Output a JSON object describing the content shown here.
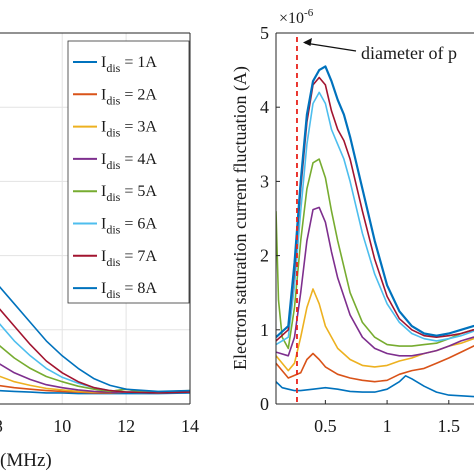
{
  "chart_data": [
    {
      "type": "line",
      "xlabel": "(MHz)",
      "ylabel": "",
      "xlim": [
        6.8,
        14
      ],
      "x_ticks": [
        "8",
        "10",
        "12",
        "14"
      ],
      "ylim": [
        0,
        5
      ],
      "grid": true,
      "legend": {
        "placement": "right",
        "entries": [
          {
            "name": "I",
            "sub": "dis",
            "value": " = 1A",
            "color": "#0072BD"
          },
          {
            "name": "I",
            "sub": "dis",
            "value": " = 2A",
            "color": "#D95319"
          },
          {
            "name": "I",
            "sub": "dis",
            "value": " = 3A",
            "color": "#EDB120"
          },
          {
            "name": "I",
            "sub": "dis",
            "value": " = 4A",
            "color": "#7E2F8E"
          },
          {
            "name": "I",
            "sub": "dis",
            "value": " = 5A",
            "color": "#77AC30"
          },
          {
            "name": "I",
            "sub": "dis",
            "value": " = 6A",
            "color": "#4DBEEE"
          },
          {
            "name": "I",
            "sub": "dis",
            "value": " = 7A",
            "color": "#A2142F"
          },
          {
            "name": "I",
            "sub": "dis",
            "value": " = 8A",
            "color": "#0072BD"
          }
        ]
      },
      "series": [
        {
          "name": "I_dis = 1A",
          "color": "#0072BD",
          "x": [
            6.8,
            7.5,
            8,
            8.5,
            9,
            9.5,
            10,
            10.5,
            11,
            11.5,
            12,
            13,
            14
          ],
          "y": [
            0.25,
            0.2,
            0.18,
            0.17,
            0.16,
            0.15,
            0.15,
            0.14,
            0.14,
            0.14,
            0.14,
            0.14,
            0.15
          ]
        },
        {
          "name": "I_dis = 2A",
          "color": "#D95319",
          "x": [
            6.8,
            7.5,
            8,
            8.5,
            9,
            9.5,
            10,
            10.5,
            11,
            11.5,
            12,
            13,
            14
          ],
          "y": [
            0.35,
            0.3,
            0.25,
            0.22,
            0.2,
            0.18,
            0.17,
            0.16,
            0.15,
            0.15,
            0.16,
            0.16,
            0.17
          ]
        },
        {
          "name": "I_dis = 3A",
          "color": "#EDB120",
          "x": [
            6.8,
            7.5,
            8,
            8.5,
            9,
            9.5,
            10,
            10.5,
            11,
            11.5,
            12,
            12.5,
            13,
            14
          ],
          "y": [
            0.7,
            0.5,
            0.38,
            0.3,
            0.25,
            0.21,
            0.19,
            0.17,
            0.16,
            0.17,
            0.2,
            0.17,
            0.16,
            0.18
          ]
        },
        {
          "name": "I_dis = 4A",
          "color": "#7E2F8E",
          "x": [
            6.8,
            7.5,
            8,
            8.5,
            9,
            9.5,
            10,
            10.5,
            11,
            11.5,
            12,
            13,
            14
          ],
          "y": [
            1.0,
            0.75,
            0.55,
            0.42,
            0.33,
            0.26,
            0.22,
            0.19,
            0.17,
            0.16,
            0.16,
            0.16,
            0.17
          ]
        },
        {
          "name": "I_dis = 5A",
          "color": "#77AC30",
          "x": [
            6.8,
            7.5,
            8,
            8.5,
            9,
            9.5,
            10,
            10.5,
            11,
            11.5,
            12,
            12.5,
            13,
            14
          ],
          "y": [
            1.3,
            1.0,
            0.8,
            0.62,
            0.48,
            0.37,
            0.3,
            0.24,
            0.2,
            0.17,
            0.2,
            0.16,
            0.15,
            0.17
          ]
        },
        {
          "name": "I_dis = 6A",
          "color": "#4DBEEE",
          "x": [
            6.8,
            7.5,
            8,
            8.5,
            9,
            9.5,
            10,
            10.5,
            11,
            11.5,
            12,
            13,
            14
          ],
          "y": [
            1.6,
            1.35,
            1.1,
            0.85,
            0.65,
            0.48,
            0.36,
            0.28,
            0.22,
            0.18,
            0.16,
            0.15,
            0.16
          ]
        },
        {
          "name": "I_dis = 7A",
          "color": "#A2142F",
          "x": [
            6.8,
            7.5,
            8,
            8.5,
            9,
            9.5,
            10,
            10.5,
            11,
            11.5,
            12,
            13,
            14
          ],
          "y": [
            1.75,
            1.55,
            1.3,
            1.05,
            0.8,
            0.58,
            0.42,
            0.3,
            0.22,
            0.18,
            0.16,
            0.15,
            0.16
          ]
        },
        {
          "name": "I_dis = 8A",
          "color": "#0072BD",
          "x": [
            6.8,
            7.5,
            8,
            8.5,
            9,
            9.5,
            10,
            10.5,
            11,
            11.5,
            12,
            13,
            14
          ],
          "y": [
            1.9,
            1.8,
            1.6,
            1.35,
            1.1,
            0.85,
            0.65,
            0.48,
            0.34,
            0.25,
            0.2,
            0.17,
            0.18
          ]
        }
      ]
    },
    {
      "type": "line",
      "ylabel": "Electron saturation current fluctuation (A)",
      "y_multiplier": "×10",
      "y_multiplier_exp": "-6",
      "xlim": [
        0.1,
        1.85
      ],
      "x_ticks": [
        "0.5",
        "1",
        "1.5"
      ],
      "ylim": [
        0,
        5
      ],
      "y_ticks": [
        "0",
        "1",
        "2",
        "3",
        "4",
        "5"
      ],
      "grid": false,
      "annotation": {
        "text": "diameter of p",
        "x_line": 0.27,
        "color": "#e8231c"
      },
      "series": [
        {
          "name": "I_dis = 1A",
          "color": "#0072BD",
          "x": [
            0.1,
            0.15,
            0.2,
            0.25,
            0.3,
            0.4,
            0.5,
            0.6,
            0.7,
            0.8,
            0.9,
            1.0,
            1.1,
            1.15,
            1.2,
            1.3,
            1.4,
            1.5,
            1.6,
            1.7,
            1.8,
            1.85
          ],
          "y": [
            0.3,
            0.22,
            0.2,
            0.18,
            0.18,
            0.2,
            0.22,
            0.2,
            0.17,
            0.16,
            0.16,
            0.2,
            0.3,
            0.38,
            0.34,
            0.24,
            0.16,
            0.12,
            0.11,
            0.1,
            0.12,
            0.15
          ]
        },
        {
          "name": "I_dis = 2A",
          "color": "#D95319",
          "x": [
            0.1,
            0.2,
            0.3,
            0.35,
            0.4,
            0.45,
            0.5,
            0.6,
            0.7,
            0.8,
            0.9,
            1.0,
            1.1,
            1.2,
            1.3,
            1.4,
            1.5,
            1.6,
            1.7,
            1.8,
            1.85
          ],
          "y": [
            0.55,
            0.35,
            0.42,
            0.6,
            0.68,
            0.6,
            0.5,
            0.4,
            0.35,
            0.32,
            0.3,
            0.32,
            0.4,
            0.45,
            0.48,
            0.55,
            0.62,
            0.7,
            0.78,
            0.85,
            0.9
          ]
        },
        {
          "name": "I_dis = 3A",
          "color": "#EDB120",
          "x": [
            0.1,
            0.2,
            0.25,
            0.3,
            0.35,
            0.4,
            0.45,
            0.5,
            0.6,
            0.7,
            0.8,
            0.9,
            1.0,
            1.1,
            1.2,
            1.3,
            1.4,
            1.5,
            1.6,
            1.7,
            1.8,
            1.85
          ],
          "y": [
            0.65,
            0.45,
            0.55,
            0.9,
            1.3,
            1.55,
            1.35,
            1.05,
            0.75,
            0.6,
            0.52,
            0.5,
            0.52,
            0.58,
            0.62,
            0.68,
            0.72,
            0.78,
            0.82,
            0.88,
            0.92,
            0.95
          ]
        },
        {
          "name": "I_dis = 4A",
          "color": "#7E2F8E",
          "x": [
            0.1,
            0.2,
            0.25,
            0.3,
            0.35,
            0.4,
            0.45,
            0.5,
            0.55,
            0.6,
            0.7,
            0.8,
            0.9,
            1.0,
            1.1,
            1.2,
            1.3,
            1.4,
            1.5,
            1.6,
            1.7,
            1.8,
            1.85
          ],
          "y": [
            0.7,
            0.65,
            0.9,
            1.5,
            2.2,
            2.62,
            2.65,
            2.45,
            2.05,
            1.7,
            1.2,
            0.9,
            0.75,
            0.68,
            0.65,
            0.65,
            0.68,
            0.72,
            0.78,
            0.85,
            0.9,
            0.95,
            1.0
          ]
        },
        {
          "name": "I_dis = 5A",
          "color": "#77AC30",
          "x": [
            0.1,
            0.12,
            0.15,
            0.2,
            0.25,
            0.3,
            0.35,
            0.4,
            0.45,
            0.5,
            0.55,
            0.6,
            0.7,
            0.8,
            0.9,
            1.0,
            1.1,
            1.2,
            1.3,
            1.4,
            1.5,
            1.6,
            1.7,
            1.8,
            1.85
          ],
          "y": [
            2.6,
            1.4,
            0.9,
            0.75,
            1.3,
            2.2,
            2.9,
            3.25,
            3.3,
            3.05,
            2.6,
            2.2,
            1.5,
            1.1,
            0.9,
            0.8,
            0.78,
            0.78,
            0.8,
            0.82,
            0.88,
            0.95,
            1.0,
            1.05,
            1.1
          ]
        },
        {
          "name": "I_dis = 6A",
          "color": "#4DBEEE",
          "x": [
            0.1,
            0.2,
            0.25,
            0.3,
            0.35,
            0.4,
            0.45,
            0.5,
            0.55,
            0.6,
            0.65,
            0.7,
            0.8,
            0.9,
            1.0,
            1.1,
            1.2,
            1.3,
            1.4,
            1.5,
            1.6,
            1.7,
            1.8,
            1.85
          ],
          "y": [
            0.8,
            0.9,
            1.6,
            2.6,
            3.5,
            4.05,
            4.2,
            4.05,
            3.7,
            3.5,
            3.3,
            3.0,
            2.3,
            1.75,
            1.35,
            1.1,
            0.95,
            0.88,
            0.85,
            0.88,
            0.92,
            0.98,
            1.05,
            1.1
          ]
        },
        {
          "name": "I_dis = 7A",
          "color": "#A2142F",
          "x": [
            0.1,
            0.2,
            0.25,
            0.3,
            0.35,
            0.4,
            0.45,
            0.5,
            0.55,
            0.6,
            0.65,
            0.7,
            0.8,
            0.9,
            1.0,
            1.1,
            1.2,
            1.3,
            1.4,
            1.5,
            1.6,
            1.7,
            1.8,
            1.85
          ],
          "y": [
            0.85,
            1.0,
            1.8,
            2.9,
            3.8,
            4.3,
            4.4,
            4.3,
            3.95,
            3.7,
            3.55,
            3.3,
            2.6,
            1.95,
            1.45,
            1.15,
            1.0,
            0.92,
            0.9,
            0.92,
            0.95,
            1.0,
            1.05,
            1.1
          ]
        },
        {
          "name": "I_dis = 8A",
          "color": "#0072BD",
          "x": [
            0.1,
            0.2,
            0.25,
            0.3,
            0.35,
            0.4,
            0.45,
            0.5,
            0.55,
            0.6,
            0.65,
            0.7,
            0.8,
            0.9,
            1.0,
            1.1,
            1.2,
            1.3,
            1.4,
            1.5,
            1.6,
            1.7,
            1.8,
            1.85
          ],
          "y": [
            0.9,
            1.05,
            1.9,
            3.0,
            3.9,
            4.35,
            4.5,
            4.55,
            4.35,
            4.1,
            3.9,
            3.6,
            2.9,
            2.2,
            1.6,
            1.25,
            1.05,
            0.95,
            0.92,
            0.95,
            1.0,
            1.05,
            1.08,
            1.12
          ]
        }
      ]
    }
  ]
}
